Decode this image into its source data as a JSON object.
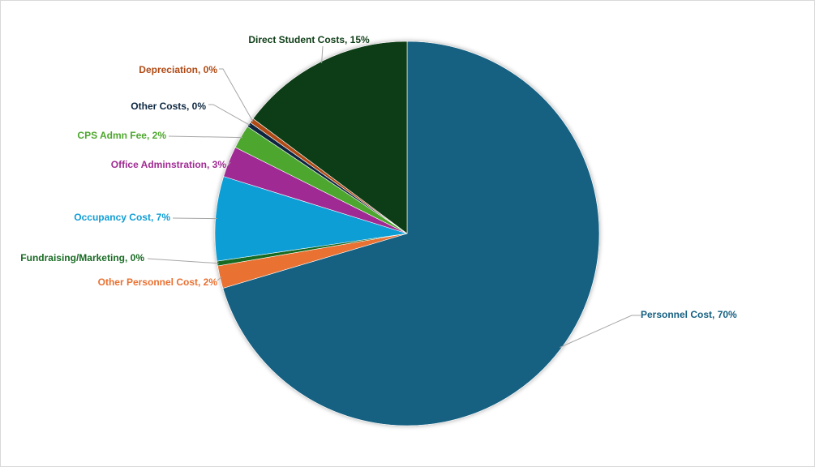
{
  "chart_data": {
    "type": "pie",
    "title": "",
    "legend": "none",
    "start_angle_deg": 0,
    "direction": "clockwise",
    "slices": [
      {
        "label": "Personnel Cost",
        "value": 70.4,
        "display": "Personnel Cost, 70%",
        "color": "#156082",
        "label_color": "#156082"
      },
      {
        "label": "Other Personnel Cost",
        "value": 1.9,
        "display": "Other Personnel Cost, 2%",
        "color": "#e97132",
        "label_color": "#e97132"
      },
      {
        "label": "Fundraising/Marketing",
        "value": 0.4,
        "display": "Fundraising/Marketing, 0%",
        "color": "#196b24",
        "label_color": "#196b24"
      },
      {
        "label": "Occupancy Cost",
        "value": 7.1,
        "display": "Occupancy Cost, 7%",
        "color": "#0f9ed5",
        "label_color": "#0f9ed5"
      },
      {
        "label": "Office Adminstration",
        "value": 2.6,
        "display": "Office Adminstration, 3%",
        "color": "#a02b93",
        "label_color": "#a02b93"
      },
      {
        "label": "CPS Admn Fee",
        "value": 2.0,
        "display": "CPS Admn Fee, 2%",
        "color": "#4ea72e",
        "label_color": "#4ea72e"
      },
      {
        "label": "Other Costs",
        "value": 0.4,
        "display": "Other Costs, 0%",
        "color": "#0e2841",
        "label_color": "#0e2841"
      },
      {
        "label": "Depreciation",
        "value": 0.4,
        "display": "Depreciation, 0%",
        "color": "#b04b16",
        "label_color": "#b04b16"
      },
      {
        "label": "Direct Student Costs",
        "value": 14.8,
        "display": "Direct Student Costs, 15%",
        "color": "#0f3e17",
        "label_color": "#0f3e17"
      }
    ]
  }
}
